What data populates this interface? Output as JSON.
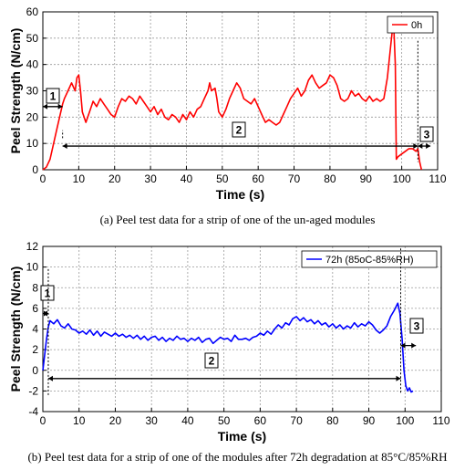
{
  "chart_data": [
    {
      "type": "line",
      "xlabel": "Time (s)",
      "ylabel": "Peel Strength (N/cm)",
      "xlim": [
        0,
        110
      ],
      "ylim": [
        0,
        60
      ],
      "xticks": [
        "0",
        "10",
        "20",
        "30",
        "40",
        "50",
        "60",
        "70",
        "80",
        "90",
        "100",
        "110"
      ],
      "yticks": [
        "0",
        "10",
        "20",
        "30",
        "40",
        "50",
        "60"
      ],
      "grid": true,
      "legend_position": "top-right",
      "series": [
        {
          "name": "0h",
          "color": "#ff0000",
          "points": [
            [
              0,
              0
            ],
            [
              1,
              1
            ],
            [
              2,
              4
            ],
            [
              3,
              10
            ],
            [
              4,
              16
            ],
            [
              5,
              22
            ],
            [
              5.5,
              25
            ],
            [
              6,
              27
            ],
            [
              7,
              30
            ],
            [
              8,
              33
            ],
            [
              9,
              30
            ],
            [
              9.5,
              35
            ],
            [
              10,
              36
            ],
            [
              10.5,
              30
            ],
            [
              11,
              22
            ],
            [
              12,
              18
            ],
            [
              13,
              22
            ],
            [
              14,
              26
            ],
            [
              15,
              24
            ],
            [
              16,
              27
            ],
            [
              17,
              25
            ],
            [
              18,
              23
            ],
            [
              19,
              21
            ],
            [
              20,
              20
            ],
            [
              21,
              24
            ],
            [
              22,
              27
            ],
            [
              23,
              26
            ],
            [
              24,
              28
            ],
            [
              25,
              27
            ],
            [
              26,
              25
            ],
            [
              27,
              28
            ],
            [
              28,
              26
            ],
            [
              29,
              24
            ],
            [
              30,
              22
            ],
            [
              31,
              24
            ],
            [
              32,
              21
            ],
            [
              33,
              23
            ],
            [
              34,
              20
            ],
            [
              35,
              19
            ],
            [
              36,
              21
            ],
            [
              37,
              20
            ],
            [
              38,
              18
            ],
            [
              39,
              21
            ],
            [
              40,
              19
            ],
            [
              41,
              22
            ],
            [
              42,
              20
            ],
            [
              43,
              23
            ],
            [
              44,
              24
            ],
            [
              45,
              27
            ],
            [
              46,
              30
            ],
            [
              46.5,
              33
            ],
            [
              47,
              30
            ],
            [
              48,
              31
            ],
            [
              48.5,
              27
            ],
            [
              49,
              22
            ],
            [
              50,
              20
            ],
            [
              51,
              23
            ],
            [
              52,
              27
            ],
            [
              53,
              30
            ],
            [
              54,
              33
            ],
            [
              55,
              31
            ],
            [
              56,
              27
            ],
            [
              57,
              26
            ],
            [
              58,
              25
            ],
            [
              59,
              27
            ],
            [
              60,
              24
            ],
            [
              61,
              21
            ],
            [
              62,
              18
            ],
            [
              63,
              19
            ],
            [
              64,
              18
            ],
            [
              65,
              17
            ],
            [
              66,
              18
            ],
            [
              67,
              21
            ],
            [
              68,
              24
            ],
            [
              69,
              27
            ],
            [
              70,
              29
            ],
            [
              71,
              31
            ],
            [
              72,
              28
            ],
            [
              73,
              30
            ],
            [
              74,
              34
            ],
            [
              75,
              36
            ],
            [
              76,
              33
            ],
            [
              77,
              31
            ],
            [
              78,
              32
            ],
            [
              79,
              33
            ],
            [
              80,
              36
            ],
            [
              81,
              35
            ],
            [
              82,
              32
            ],
            [
              83,
              27
            ],
            [
              84,
              26
            ],
            [
              85,
              27
            ],
            [
              86,
              30
            ],
            [
              87,
              28
            ],
            [
              88,
              29
            ],
            [
              89,
              27
            ],
            [
              90,
              26
            ],
            [
              91,
              28
            ],
            [
              92,
              26
            ],
            [
              93,
              27
            ],
            [
              94,
              26
            ],
            [
              95,
              27
            ],
            [
              96,
              35
            ],
            [
              97,
              48
            ],
            [
              97.7,
              57
            ],
            [
              98.2,
              40
            ],
            [
              98.5,
              4
            ],
            [
              99,
              5
            ],
            [
              100,
              6
            ],
            [
              101,
              7
            ],
            [
              102,
              8
            ],
            [
              103,
              8
            ],
            [
              104,
              7
            ],
            [
              104.5,
              8
            ],
            [
              105,
              3
            ],
            [
              105.5,
              0
            ]
          ]
        }
      ],
      "annotations": [
        {
          "label": "1",
          "x_from": 0,
          "x_to": 5.5,
          "y": 24
        },
        {
          "label": "2",
          "x_from": 5.5,
          "x_to": 104.5,
          "y": 9
        },
        {
          "label": "3",
          "x_from": 104.5,
          "x_to": 108,
          "y": 9
        }
      ]
    },
    {
      "type": "line",
      "xlabel": "Time (s)",
      "ylabel": "Peel Strength (N/cm)",
      "xlim": [
        0,
        110
      ],
      "ylim": [
        -4,
        12
      ],
      "xticks": [
        "0",
        "10",
        "20",
        "30",
        "40",
        "50",
        "60",
        "70",
        "80",
        "90",
        "100",
        "110"
      ],
      "yticks": [
        "-4",
        "-2",
        "0",
        "2",
        "4",
        "6",
        "8",
        "10",
        "12"
      ],
      "grid": true,
      "legend_position": "top-right",
      "series": [
        {
          "name": "72h (85oC-85%RH)",
          "color": "#0000ff",
          "points": [
            [
              0,
              0
            ],
            [
              0.5,
              1.5
            ],
            [
              1,
              3
            ],
            [
              1.5,
              4.2
            ],
            [
              2,
              4.8
            ],
            [
              3,
              4.5
            ],
            [
              4,
              4.9
            ],
            [
              5,
              4.3
            ],
            [
              6,
              4.1
            ],
            [
              7,
              4.5
            ],
            [
              8,
              4
            ],
            [
              9,
              3.9
            ],
            [
              10,
              3.6
            ],
            [
              11,
              3.8
            ],
            [
              12,
              3.5
            ],
            [
              13,
              3.9
            ],
            [
              14,
              3.4
            ],
            [
              15,
              3.8
            ],
            [
              16,
              3.3
            ],
            [
              17,
              3.7
            ],
            [
              18,
              3.5
            ],
            [
              19,
              3.3
            ],
            [
              20,
              3.6
            ],
            [
              21,
              3.3
            ],
            [
              22,
              3.5
            ],
            [
              23,
              3.2
            ],
            [
              24,
              3.4
            ],
            [
              25,
              3.1
            ],
            [
              26,
              3.4
            ],
            [
              27,
              3
            ],
            [
              28,
              3.3
            ],
            [
              29,
              2.9
            ],
            [
              30,
              3.2
            ],
            [
              31,
              3.3
            ],
            [
              32,
              2.9
            ],
            [
              33,
              3.2
            ],
            [
              34,
              2.8
            ],
            [
              35,
              3.1
            ],
            [
              36,
              2.9
            ],
            [
              37,
              3.3
            ],
            [
              38,
              3
            ],
            [
              39,
              3.1
            ],
            [
              40,
              2.8
            ],
            [
              41,
              3.1
            ],
            [
              42,
              2.9
            ],
            [
              43,
              3.2
            ],
            [
              44,
              2.7
            ],
            [
              45,
              3
            ],
            [
              46,
              3.1
            ],
            [
              47,
              2.6
            ],
            [
              48,
              2.9
            ],
            [
              49,
              3.2
            ],
            [
              50,
              3
            ],
            [
              51,
              3.1
            ],
            [
              52,
              2.8
            ],
            [
              53,
              3.4
            ],
            [
              54,
              3
            ],
            [
              55,
              3
            ],
            [
              56,
              3.1
            ],
            [
              57,
              2.9
            ],
            [
              58,
              3.2
            ],
            [
              59,
              3.3
            ],
            [
              60,
              3.6
            ],
            [
              61,
              3.4
            ],
            [
              62,
              3.8
            ],
            [
              63,
              3.5
            ],
            [
              64,
              4
            ],
            [
              65,
              4.4
            ],
            [
              66,
              4.1
            ],
            [
              67,
              4.6
            ],
            [
              68,
              4.4
            ],
            [
              69,
              5
            ],
            [
              70,
              5.2
            ],
            [
              71,
              4.8
            ],
            [
              72,
              5.1
            ],
            [
              73,
              4.7
            ],
            [
              74,
              4.9
            ],
            [
              75,
              4.5
            ],
            [
              76,
              4.8
            ],
            [
              77,
              4.4
            ],
            [
              78,
              4.6
            ],
            [
              79,
              4.2
            ],
            [
              80,
              4.5
            ],
            [
              81,
              4.1
            ],
            [
              82,
              4.4
            ],
            [
              83,
              4
            ],
            [
              84,
              4.3
            ],
            [
              85,
              4.1
            ],
            [
              86,
              4.6
            ],
            [
              87,
              4.2
            ],
            [
              88,
              4.5
            ],
            [
              89,
              4.3
            ],
            [
              90,
              4.7
            ],
            [
              91,
              4.4
            ],
            [
              92,
              3.9
            ],
            [
              93,
              3.6
            ],
            [
              94,
              3.9
            ],
            [
              95,
              4.3
            ],
            [
              96,
              5.2
            ],
            [
              97,
              5.8
            ],
            [
              98,
              6.5
            ],
            [
              98.6,
              5.5
            ],
            [
              99.2,
              3
            ],
            [
              99.7,
              0
            ],
            [
              100.2,
              -1.5
            ],
            [
              100.7,
              -2
            ],
            [
              101.2,
              -1.7
            ],
            [
              101.7,
              -2.1
            ],
            [
              102.2,
              -2
            ]
          ]
        }
      ],
      "annotations": [
        {
          "label": "1",
          "x_from": 0,
          "x_to": 1.5,
          "y": 5.5
        },
        {
          "label": "2",
          "x_from": 1.5,
          "x_to": 98.8,
          "y": -0.8
        },
        {
          "label": "3",
          "x_from": 98.8,
          "x_to": 103,
          "y": 2.4
        }
      ]
    }
  ],
  "captions": {
    "a": "(a) Peel test data for a strip of one of the un-aged modules",
    "b": "(b) Peel test data for a strip of one of the modules after 72h degradation at 85°C/85%RH"
  }
}
